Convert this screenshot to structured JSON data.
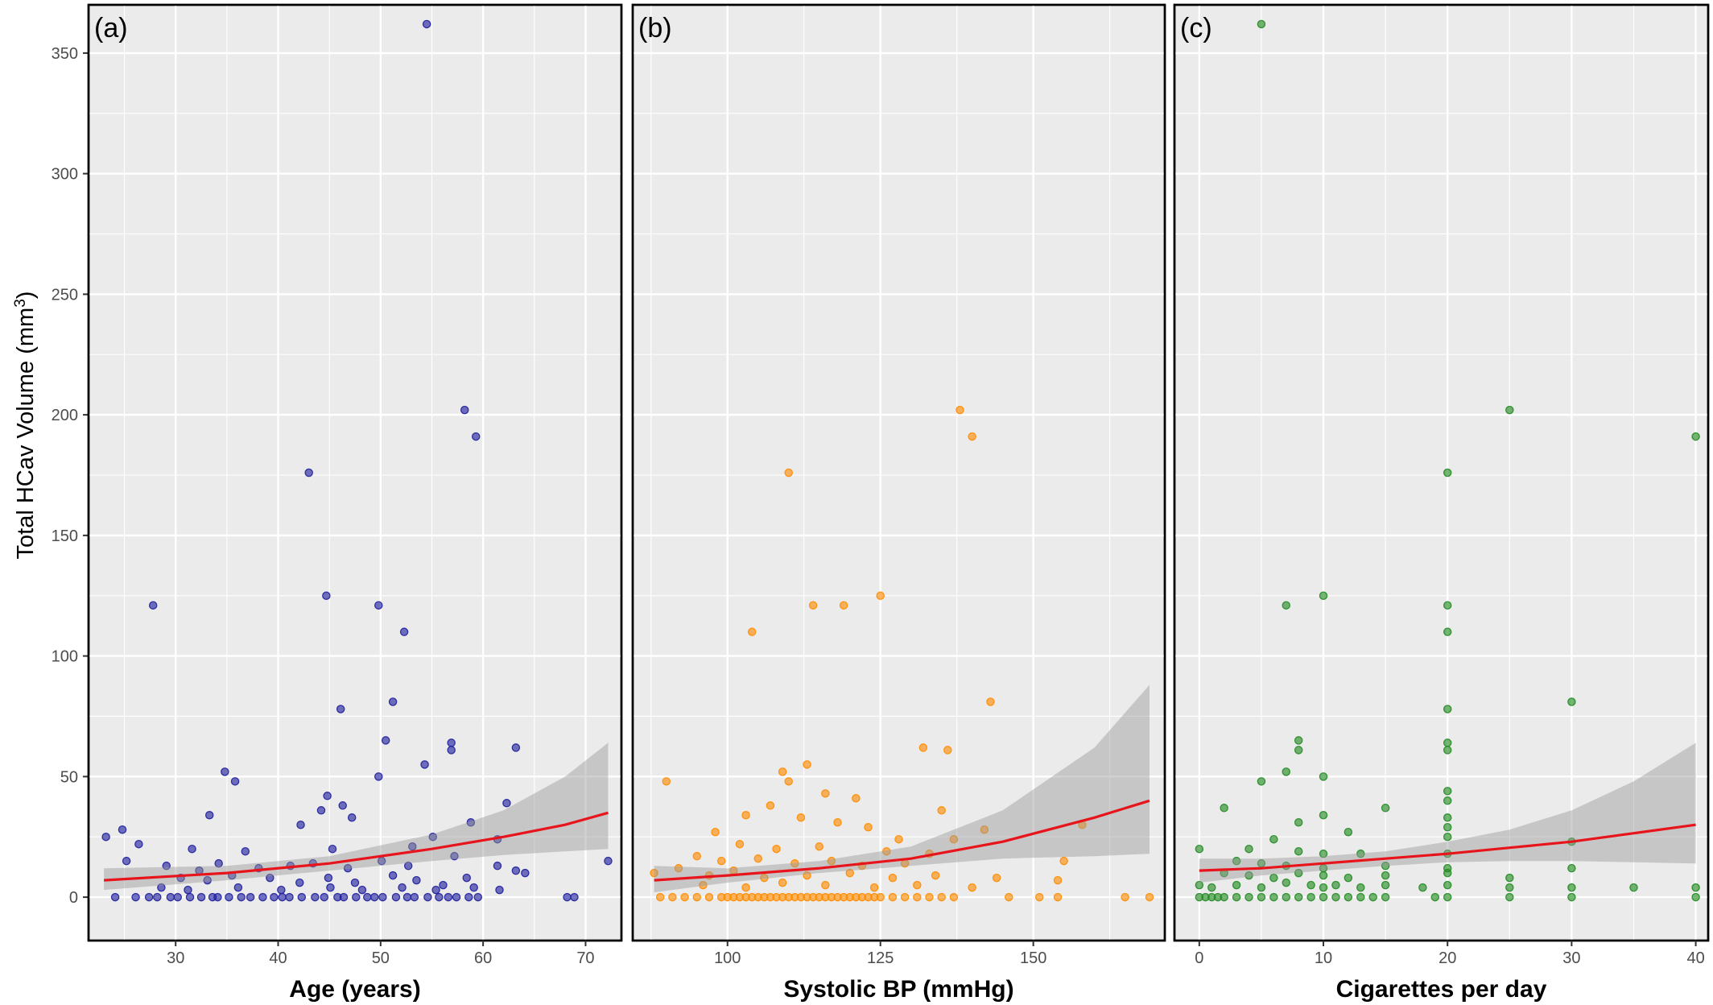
{
  "y_axis": {
    "label_main": "Total HCav Volume (mm",
    "label_sup": "3",
    "label_close": ")"
  },
  "chart_data": [
    {
      "type": "scatter",
      "tag": "(a)",
      "xlabel": "Age (years)",
      "xlim": [
        21.5,
        73.5
      ],
      "ylim": [
        -18,
        370
      ],
      "x_ticks": [
        30,
        40,
        50,
        60,
        70
      ],
      "y_ticks": [
        0,
        50,
        100,
        150,
        200,
        250,
        300,
        350
      ],
      "point_color": "#1f1f9e",
      "points": [
        [
          54.5,
          362
        ],
        [
          58.2,
          202
        ],
        [
          59.3,
          191
        ],
        [
          43,
          176
        ],
        [
          27.8,
          121
        ],
        [
          44.7,
          125
        ],
        [
          49.8,
          121
        ],
        [
          52.3,
          110
        ],
        [
          51.2,
          81
        ],
        [
          46.1,
          78
        ],
        [
          56.9,
          64
        ],
        [
          50.5,
          65
        ],
        [
          56.9,
          61
        ],
        [
          63.2,
          62
        ],
        [
          34.8,
          52
        ],
        [
          49.8,
          50
        ],
        [
          35.8,
          48
        ],
        [
          54.3,
          55
        ],
        [
          44.8,
          42
        ],
        [
          46.3,
          38
        ],
        [
          44.2,
          36
        ],
        [
          62.3,
          39
        ],
        [
          42.2,
          30
        ],
        [
          47.2,
          33
        ],
        [
          33.3,
          34
        ],
        [
          58.8,
          31
        ],
        [
          24.8,
          28
        ],
        [
          23.2,
          25
        ],
        [
          26.4,
          22
        ],
        [
          55.1,
          25
        ],
        [
          31.6,
          20
        ],
        [
          36.8,
          19
        ],
        [
          45.3,
          20
        ],
        [
          53.1,
          21
        ],
        [
          61.4,
          24
        ],
        [
          57.2,
          17
        ],
        [
          25.2,
          15
        ],
        [
          29.1,
          13
        ],
        [
          32.3,
          11
        ],
        [
          34.2,
          14
        ],
        [
          38.1,
          12
        ],
        [
          41.2,
          13
        ],
        [
          43.4,
          14
        ],
        [
          46.8,
          12
        ],
        [
          50.1,
          15
        ],
        [
          52.7,
          13
        ],
        [
          61.4,
          13
        ],
        [
          63.2,
          11
        ],
        [
          64.1,
          10
        ],
        [
          30.5,
          8
        ],
        [
          33.1,
          7
        ],
        [
          35.5,
          9
        ],
        [
          39.2,
          8
        ],
        [
          42.1,
          6
        ],
        [
          44.9,
          8
        ],
        [
          47.5,
          6
        ],
        [
          51.2,
          9
        ],
        [
          53.5,
          7
        ],
        [
          56.1,
          5
        ],
        [
          58.4,
          8
        ],
        [
          28.6,
          4
        ],
        [
          31.2,
          3
        ],
        [
          36.1,
          4
        ],
        [
          40.3,
          3
        ],
        [
          45.1,
          4
        ],
        [
          48.2,
          3
        ],
        [
          52.1,
          4
        ],
        [
          55.4,
          3
        ],
        [
          59.1,
          4
        ],
        [
          61.6,
          3
        ],
        [
          72.2,
          15
        ],
        [
          24.1,
          0
        ],
        [
          26.1,
          0
        ],
        [
          27.4,
          0
        ],
        [
          28.2,
          0
        ],
        [
          29.5,
          0
        ],
        [
          30.2,
          0
        ],
        [
          31.4,
          0
        ],
        [
          32.5,
          0
        ],
        [
          33.6,
          0
        ],
        [
          34.1,
          0
        ],
        [
          35.2,
          0
        ],
        [
          36.4,
          0
        ],
        [
          37.3,
          0
        ],
        [
          38.5,
          0
        ],
        [
          39.6,
          0
        ],
        [
          40.4,
          0
        ],
        [
          41.1,
          0
        ],
        [
          42.3,
          0
        ],
        [
          43.6,
          0
        ],
        [
          44.5,
          0
        ],
        [
          45.8,
          0
        ],
        [
          46.4,
          0
        ],
        [
          47.6,
          0
        ],
        [
          48.7,
          0
        ],
        [
          49.4,
          0
        ],
        [
          50.2,
          0
        ],
        [
          51.5,
          0
        ],
        [
          52.6,
          0
        ],
        [
          53.3,
          0
        ],
        [
          54.6,
          0
        ],
        [
          55.7,
          0
        ],
        [
          56.6,
          0
        ],
        [
          57.4,
          0
        ],
        [
          58.6,
          0
        ],
        [
          59.5,
          0
        ],
        [
          68.2,
          0
        ],
        [
          68.9,
          0
        ]
      ],
      "fit": {
        "x": [
          23,
          35,
          45,
          55,
          62,
          68,
          72.2
        ],
        "y": [
          7,
          10,
          14,
          20,
          25,
          30,
          35
        ],
        "lo": [
          3,
          7,
          11,
          15,
          17.5,
          19,
          20
        ],
        "hi": [
          12,
          13,
          17,
          26,
          36,
          50,
          64
        ]
      }
    },
    {
      "type": "scatter",
      "tag": "(b)",
      "xlabel": "Systolic BP (mmHg)",
      "xlim": [
        84.5,
        171.5
      ],
      "ylim": [
        -18,
        370
      ],
      "x_ticks": [
        100,
        125,
        150
      ],
      "y_ticks": [
        0,
        50,
        100,
        150,
        200,
        250,
        300,
        350
      ],
      "point_color": "#ff8c00",
      "points": [
        [
          138,
          202
        ],
        [
          140,
          191
        ],
        [
          110,
          176
        ],
        [
          125,
          125
        ],
        [
          114,
          121
        ],
        [
          119,
          121
        ],
        [
          104,
          110
        ],
        [
          143,
          81
        ],
        [
          132,
          62
        ],
        [
          136,
          61
        ],
        [
          113,
          55
        ],
        [
          109,
          52
        ],
        [
          110,
          48
        ],
        [
          90,
          48
        ],
        [
          116,
          43
        ],
        [
          121,
          41
        ],
        [
          107,
          38
        ],
        [
          135,
          36
        ],
        [
          103,
          34
        ],
        [
          112,
          33
        ],
        [
          118,
          31
        ],
        [
          123,
          29
        ],
        [
          98,
          27
        ],
        [
          142,
          28
        ],
        [
          158,
          30
        ],
        [
          128,
          24
        ],
        [
          137,
          24
        ],
        [
          102,
          22
        ],
        [
          108,
          20
        ],
        [
          115,
          21
        ],
        [
          126,
          19
        ],
        [
          133,
          18
        ],
        [
          95,
          17
        ],
        [
          99,
          15
        ],
        [
          105,
          16
        ],
        [
          111,
          14
        ],
        [
          117,
          15
        ],
        [
          122,
          13
        ],
        [
          129,
          14
        ],
        [
          88,
          10
        ],
        [
          92,
          12
        ],
        [
          97,
          9
        ],
        [
          101,
          11
        ],
        [
          106,
          8
        ],
        [
          113,
          9
        ],
        [
          120,
          10
        ],
        [
          127,
          8
        ],
        [
          134,
          9
        ],
        [
          144,
          8
        ],
        [
          154,
          7
        ],
        [
          96,
          5
        ],
        [
          103,
          4
        ],
        [
          109,
          6
        ],
        [
          116,
          5
        ],
        [
          124,
          4
        ],
        [
          131,
          5
        ],
        [
          140,
          4
        ],
        [
          155,
          15
        ],
        [
          89,
          0
        ],
        [
          91,
          0
        ],
        [
          93,
          0
        ],
        [
          95,
          0
        ],
        [
          97,
          0
        ],
        [
          99,
          0
        ],
        [
          100,
          0
        ],
        [
          101,
          0
        ],
        [
          102,
          0
        ],
        [
          103,
          0
        ],
        [
          104,
          0
        ],
        [
          105,
          0
        ],
        [
          106,
          0
        ],
        [
          107,
          0
        ],
        [
          108,
          0
        ],
        [
          109,
          0
        ],
        [
          110,
          0
        ],
        [
          111,
          0
        ],
        [
          112,
          0
        ],
        [
          113,
          0
        ],
        [
          114,
          0
        ],
        [
          115,
          0
        ],
        [
          116,
          0
        ],
        [
          117,
          0
        ],
        [
          118,
          0
        ],
        [
          119,
          0
        ],
        [
          120,
          0
        ],
        [
          121,
          0
        ],
        [
          122,
          0
        ],
        [
          123,
          0
        ],
        [
          124,
          0
        ],
        [
          125,
          0
        ],
        [
          127,
          0
        ],
        [
          129,
          0
        ],
        [
          131,
          0
        ],
        [
          133,
          0
        ],
        [
          135,
          0
        ],
        [
          137,
          0
        ],
        [
          146,
          0
        ],
        [
          151,
          0
        ],
        [
          154,
          0
        ],
        [
          165,
          0
        ],
        [
          169,
          0
        ]
      ],
      "fit": {
        "x": [
          88,
          100,
          115,
          130,
          145,
          160,
          169
        ],
        "y": [
          7,
          9,
          12,
          16,
          23,
          33,
          40
        ],
        "lo": [
          2,
          6,
          10,
          13,
          16,
          17,
          18
        ],
        "hi": [
          13,
          12,
          15,
          21,
          36,
          62,
          88
        ]
      }
    },
    {
      "type": "scatter",
      "tag": "(c)",
      "xlabel": "Cigarettes per day",
      "xlim": [
        -2,
        41
      ],
      "ylim": [
        -18,
        370
      ],
      "x_ticks": [
        0,
        10,
        20,
        30,
        40
      ],
      "y_ticks": [
        0,
        50,
        100,
        150,
        200,
        250,
        300,
        350
      ],
      "point_color": "#228b22",
      "points": [
        [
          5,
          362
        ],
        [
          25,
          202
        ],
        [
          40,
          191
        ],
        [
          20,
          176
        ],
        [
          7,
          121
        ],
        [
          10,
          125
        ],
        [
          20,
          121
        ],
        [
          20,
          110
        ],
        [
          30,
          81
        ],
        [
          20,
          78
        ],
        [
          8,
          65
        ],
        [
          20,
          64
        ],
        [
          8,
          61
        ],
        [
          20,
          61
        ],
        [
          7,
          52
        ],
        [
          5,
          48
        ],
        [
          10,
          50
        ],
        [
          20,
          44
        ],
        [
          20,
          40
        ],
        [
          2,
          37
        ],
        [
          15,
          37
        ],
        [
          10,
          34
        ],
        [
          20,
          33
        ],
        [
          8,
          31
        ],
        [
          20,
          29
        ],
        [
          12,
          27
        ],
        [
          6,
          24
        ],
        [
          20,
          25
        ],
        [
          30,
          23
        ],
        [
          4,
          20
        ],
        [
          0,
          20
        ],
        [
          8,
          19
        ],
        [
          10,
          18
        ],
        [
          13,
          18
        ],
        [
          20,
          18
        ],
        [
          25,
          8
        ],
        [
          3,
          15
        ],
        [
          5,
          14
        ],
        [
          7,
          13
        ],
        [
          10,
          12
        ],
        [
          15,
          13
        ],
        [
          20,
          12
        ],
        [
          2,
          10
        ],
        [
          4,
          9
        ],
        [
          6,
          8
        ],
        [
          8,
          10
        ],
        [
          10,
          9
        ],
        [
          12,
          8
        ],
        [
          15,
          9
        ],
        [
          20,
          10
        ],
        [
          30,
          12
        ],
        [
          0,
          5
        ],
        [
          1,
          4
        ],
        [
          3,
          5
        ],
        [
          5,
          4
        ],
        [
          7,
          6
        ],
        [
          9,
          5
        ],
        [
          10,
          4
        ],
        [
          11,
          5
        ],
        [
          13,
          4
        ],
        [
          15,
          5
        ],
        [
          18,
          4
        ],
        [
          20,
          5
        ],
        [
          25,
          4
        ],
        [
          30,
          4
        ],
        [
          35,
          4
        ],
        [
          40,
          4
        ],
        [
          0,
          0
        ],
        [
          0.5,
          0
        ],
        [
          1,
          0
        ],
        [
          1.5,
          0
        ],
        [
          2,
          0
        ],
        [
          3,
          0
        ],
        [
          4,
          0
        ],
        [
          5,
          0
        ],
        [
          6,
          0
        ],
        [
          7,
          0
        ],
        [
          8,
          0
        ],
        [
          9,
          0
        ],
        [
          10,
          0
        ],
        [
          11,
          0
        ],
        [
          12,
          0
        ],
        [
          13,
          0
        ],
        [
          14,
          0
        ],
        [
          15,
          0
        ],
        [
          19,
          0
        ],
        [
          20,
          0
        ],
        [
          25,
          0
        ],
        [
          30,
          0
        ],
        [
          40,
          0
        ]
      ],
      "fit": {
        "x": [
          0,
          5,
          10,
          15,
          20,
          25,
          30,
          35,
          40
        ],
        "y": [
          11,
          12,
          14,
          16,
          18,
          20.5,
          23,
          26.5,
          30
        ],
        "lo": [
          6,
          9,
          11,
          13,
          14.5,
          15,
          15,
          14.5,
          14
        ],
        "hi": [
          16,
          16,
          17,
          19,
          23,
          28,
          36,
          48,
          64
        ]
      }
    }
  ]
}
